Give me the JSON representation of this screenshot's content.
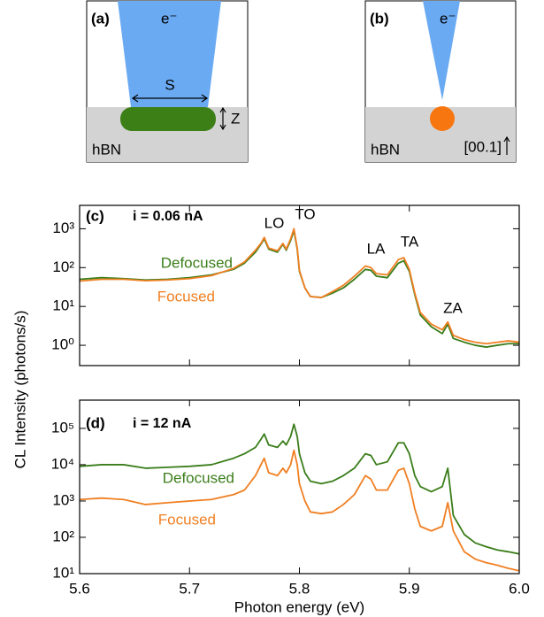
{
  "schematics": {
    "a": {
      "label": "(a)",
      "beam": "e⁻",
      "size": "S",
      "depth": "Z",
      "material": "hBN"
    },
    "b": {
      "label": "(b)",
      "beam": "e⁻",
      "material": "hBN",
      "axis": "[00.1]"
    }
  },
  "y_label": "CL Intensity (photons/s)",
  "chart_data": [
    {
      "type": "line",
      "panel_label": "(c)",
      "title": "i = 0.06 nA",
      "annotations": [
        "LO",
        "TO",
        "LA",
        "TA",
        "ZA"
      ],
      "log_y": true,
      "x": [
        5.6,
        5.62,
        5.64,
        5.66,
        5.68,
        5.7,
        5.72,
        5.74,
        5.75,
        5.76,
        5.765,
        5.768,
        5.772,
        5.78,
        5.785,
        5.788,
        5.792,
        5.795,
        5.798,
        5.8,
        5.805,
        5.81,
        5.82,
        5.83,
        5.84,
        5.85,
        5.86,
        5.865,
        5.87,
        5.88,
        5.89,
        5.895,
        5.9,
        5.905,
        5.91,
        5.92,
        5.93,
        5.935,
        5.94,
        5.95,
        5.96,
        5.97,
        5.98,
        5.99,
        6.0
      ],
      "series": [
        {
          "name": "Defocused",
          "color": "#3a7d1a",
          "values": [
            50,
            55,
            52,
            48,
            50,
            55,
            65,
            90,
            130,
            250,
            400,
            550,
            300,
            250,
            400,
            280,
            500,
            900,
            300,
            80,
            30,
            18,
            17,
            22,
            30,
            50,
            90,
            85,
            60,
            55,
            130,
            150,
            80,
            20,
            6,
            3,
            2,
            3.5,
            1.5,
            1.2,
            1,
            0.9,
            1,
            1.1,
            1.1
          ]
        },
        {
          "name": "Focused",
          "color": "#f07f22",
          "values": [
            45,
            50,
            50,
            46,
            48,
            52,
            62,
            95,
            140,
            280,
            420,
            600,
            320,
            270,
            420,
            300,
            550,
            1000,
            320,
            85,
            30,
            18,
            17,
            24,
            35,
            60,
            110,
            100,
            70,
            65,
            160,
            180,
            90,
            22,
            7,
            3.5,
            2.5,
            4,
            1.8,
            1.4,
            1.2,
            1.1,
            1.2,
            1.3,
            1.2
          ]
        }
      ],
      "xlim": [
        5.6,
        6.0
      ],
      "xticks": [
        5.6,
        5.7,
        5.8,
        5.9,
        6
      ],
      "ylim": [
        0.3,
        4000
      ],
      "yticks": [
        {
          "value": 1,
          "label": "10⁰"
        },
        {
          "value": 10,
          "label": "10¹"
        },
        {
          "value": 100,
          "label": "10²"
        },
        {
          "value": 1000,
          "label": "10³"
        }
      ]
    },
    {
      "type": "line",
      "panel_label": "(d)",
      "title": "i = 12 nA",
      "x_label": "Photon energy (eV)",
      "log_y": true,
      "x": [
        5.6,
        5.62,
        5.64,
        5.66,
        5.68,
        5.7,
        5.72,
        5.74,
        5.75,
        5.76,
        5.765,
        5.768,
        5.772,
        5.78,
        5.785,
        5.788,
        5.792,
        5.795,
        5.798,
        5.8,
        5.805,
        5.81,
        5.82,
        5.83,
        5.84,
        5.85,
        5.86,
        5.865,
        5.87,
        5.88,
        5.89,
        5.895,
        5.9,
        5.905,
        5.91,
        5.92,
        5.93,
        5.935,
        5.94,
        5.95,
        5.96,
        5.97,
        5.98,
        5.99,
        6.0
      ],
      "series": [
        {
          "name": "Defocused",
          "color": "#3a7d1a",
          "values": [
            9000,
            10000,
            10000,
            8000,
            8500,
            9000,
            10000,
            15000,
            20000,
            30000,
            50000,
            70000,
            35000,
            30000,
            45000,
            35000,
            60000,
            130000,
            60000,
            20000,
            6000,
            3500,
            3000,
            3500,
            5000,
            8000,
            20000,
            18000,
            10000,
            12000,
            40000,
            40000,
            20000,
            5000,
            2500,
            1800,
            2500,
            8000,
            400,
            120,
            70,
            55,
            45,
            40,
            35
          ]
        },
        {
          "name": "Focused",
          "color": "#f07f22",
          "values": [
            1100,
            1200,
            1100,
            800,
            900,
            1000,
            1100,
            1500,
            2000,
            5000,
            10000,
            15000,
            6000,
            5000,
            8000,
            6000,
            10000,
            25000,
            10000,
            3000,
            1000,
            500,
            450,
            500,
            800,
            1500,
            5000,
            4000,
            2000,
            2000,
            7000,
            8000,
            3000,
            600,
            200,
            150,
            200,
            900,
            150,
            40,
            25,
            20,
            17,
            14,
            12
          ]
        }
      ],
      "xlim": [
        5.6,
        6.0
      ],
      "xticks": [
        5.6,
        5.7,
        5.8,
        5.9,
        {
          "value": 6,
          "label": "6.0"
        }
      ],
      "ylim": [
        10,
        600000
      ],
      "yticks": [
        {
          "value": 10,
          "label": "10¹"
        },
        {
          "value": 100,
          "label": "10²"
        },
        {
          "value": 1000,
          "label": "10³"
        },
        {
          "value": 10000,
          "label": "10⁴"
        },
        {
          "value": 100000,
          "label": "10⁵"
        }
      ]
    }
  ]
}
